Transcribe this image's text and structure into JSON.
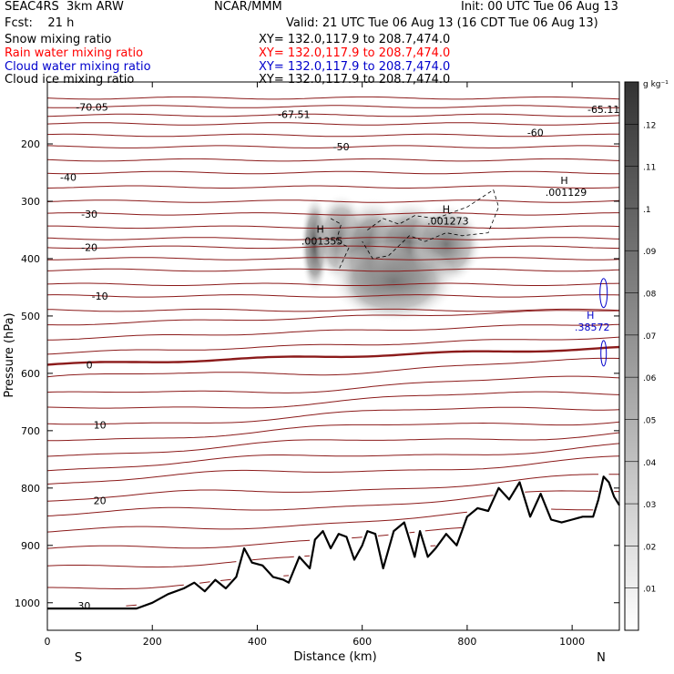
{
  "header": {
    "model": "SEAC4RS  3km ARW",
    "org": "NCAR/MMM",
    "init": "Init: 00 UTC Tue 06 Aug 13",
    "fcst": "Fcst:    21 h",
    "valid": "Valid: 21 UTC Tue 06 Aug 13 (16 CDT Tue 06 Aug 13)"
  },
  "fields": [
    {
      "name": "Snow mixing ratio",
      "xy": "XY= 132.0,117.9 to 208.7,474.0",
      "color": "#000000"
    },
    {
      "name": "Rain water mixing ratio",
      "xy": "XY= 132.0,117.9 to 208.7,474.0",
      "color": "#ff0000"
    },
    {
      "name": "Cloud water mixing ratio",
      "xy": "XY= 132.0,117.9 to 208.7,474.0",
      "color": "#0000cc"
    },
    {
      "name": "Cloud ice mixing ratio",
      "xy": "XY= 132.0,117.9 to 208.7,474.0",
      "color": "#000000"
    }
  ],
  "chart_data": {
    "type": "contour_cross_section",
    "xlabel": "Distance (km)",
    "ylabel": "Pressure (hPa)",
    "xlim": [
      0,
      1090
    ],
    "ylim": [
      1050,
      100
    ],
    "x_ticks": [
      0,
      200,
      400,
      600,
      800,
      1000
    ],
    "y_ticks": [
      200,
      300,
      400,
      500,
      600,
      700,
      800,
      900,
      1000
    ],
    "x_end_labels": [
      "S",
      "N"
    ],
    "colorbar": {
      "unit": "g kg⁻¹",
      "ticks": [
        ".01",
        ".02",
        ".03",
        ".04",
        ".05",
        ".06",
        ".07",
        ".08",
        ".09",
        ".1",
        ".11",
        ".12"
      ],
      "min": 0,
      "max": 0.13
    },
    "temperature_contours": [
      {
        "label": "-65.11",
        "x": 1060,
        "p": 140
      },
      {
        "label": "-67.51",
        "x": 470,
        "p": 148
      },
      {
        "label": "-70.05",
        "x": 85,
        "p": 136
      },
      {
        "label": "-60",
        "x": 930,
        "p": 180
      },
      {
        "label": "-50",
        "x": 560,
        "p": 205
      },
      {
        "label": "-40",
        "x": 40,
        "p": 258
      },
      {
        "label": "-30",
        "x": 80,
        "p": 322
      },
      {
        "label": "-20",
        "x": 80,
        "p": 380
      },
      {
        "label": "-10",
        "x": 100,
        "p": 465
      },
      {
        "label": "0",
        "x": 80,
        "p": 585
      },
      {
        "label": "10",
        "x": 100,
        "p": 690
      },
      {
        "label": "20",
        "x": 100,
        "p": 822
      },
      {
        "label": "30",
        "x": 70,
        "p": 1005
      }
    ],
    "contour_label_texts": [
      ".001355",
      ".001273",
      ".001129",
      ".38572"
    ],
    "hi_markers": [
      {
        "label": "H",
        "value": ".001355",
        "x": 520,
        "p": 355
      },
      {
        "label": "H",
        "value": ".001273",
        "x": 760,
        "p": 320
      },
      {
        "label": "H",
        "value": ".001129",
        "x": 985,
        "p": 270
      },
      {
        "label": "H",
        "value": ".38572",
        "x": 1035,
        "p": 505
      }
    ],
    "terrain_pressure": {
      "x": [
        0,
        100,
        170,
        200,
        230,
        260,
        280,
        300,
        320,
        340,
        360,
        375,
        390,
        410,
        430,
        450,
        460,
        480,
        500,
        510,
        525,
        540,
        555,
        570,
        585,
        600,
        610,
        625,
        640,
        660,
        680,
        700,
        710,
        725,
        740,
        760,
        780,
        800,
        820,
        840,
        860,
        880,
        900,
        920,
        940,
        960,
        980,
        1000,
        1020,
        1040,
        1050,
        1060,
        1070,
        1080,
        1090
      ],
      "p": [
        1010,
        1010,
        1010,
        1000,
        985,
        975,
        965,
        980,
        960,
        975,
        955,
        905,
        930,
        935,
        955,
        960,
        965,
        920,
        940,
        890,
        875,
        905,
        880,
        885,
        925,
        900,
        875,
        880,
        940,
        875,
        860,
        920,
        875,
        920,
        905,
        880,
        900,
        850,
        835,
        840,
        800,
        820,
        790,
        850,
        810,
        855,
        860,
        855,
        850,
        850,
        820,
        780,
        790,
        815,
        830
      ]
    },
    "grid": false,
    "legend": "header text block, top-left"
  }
}
